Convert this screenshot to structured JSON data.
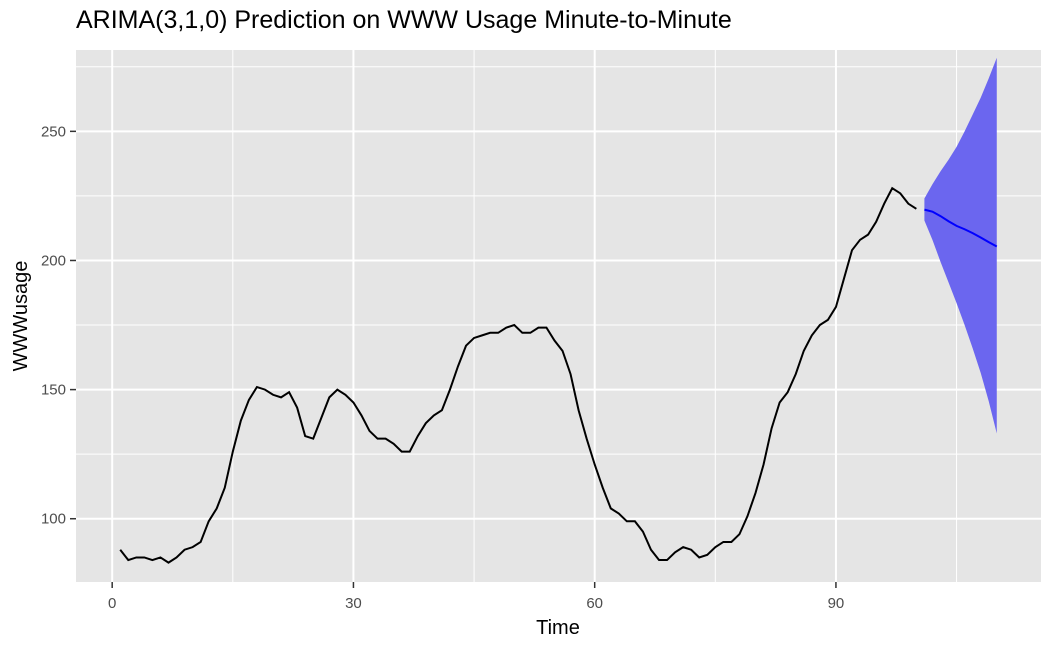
{
  "chart_data": {
    "type": "line",
    "title": "ARIMA(3,1,0) Prediction on WWW Usage Minute-to-Minute",
    "xlabel": "Time",
    "ylabel": "WWWusage",
    "xlim": [
      -4.5,
      115.5
    ],
    "ylim": [
      75.5,
      281.5
    ],
    "x_ticks": [
      0,
      30,
      60,
      90
    ],
    "y_ticks": [
      100,
      150,
      200,
      250
    ],
    "grid": true,
    "legend": "none",
    "colors": {
      "panel": "#e5e5e5",
      "grid": "#ffffff",
      "observed": "#000000",
      "forecast": "#0000ff",
      "interval": "#6b66ef"
    },
    "series": [
      {
        "x": [
          1,
          2,
          3,
          4,
          5,
          6,
          7,
          8,
          9,
          10,
          11,
          12,
          13,
          14,
          15,
          16,
          17,
          18,
          19,
          20,
          21,
          22,
          23,
          24,
          25,
          26,
          27,
          28,
          29,
          30,
          31,
          32,
          33,
          34,
          35,
          36,
          37,
          38,
          39,
          40,
          41,
          42,
          43,
          44,
          45,
          46,
          47,
          48,
          49,
          50,
          51,
          52,
          53,
          54,
          55,
          56,
          57,
          58,
          59,
          60,
          61,
          62,
          63,
          64,
          65,
          66,
          67,
          68,
          69,
          70,
          71,
          72,
          73,
          74,
          75,
          76,
          77,
          78,
          79,
          80,
          81,
          82,
          83,
          84,
          85,
          86,
          87,
          88,
          89,
          90,
          91,
          92,
          93,
          94,
          95,
          96,
          97,
          98,
          99,
          100
        ],
        "values": [
          88,
          84,
          85,
          85,
          84,
          85,
          83,
          85,
          88,
          89,
          91,
          99,
          104,
          112,
          126,
          138,
          146,
          151,
          150,
          148,
          147,
          149,
          143,
          132,
          131,
          139,
          147,
          150,
          148,
          145,
          140,
          134,
          131,
          131,
          129,
          126,
          126,
          132,
          137,
          140,
          142,
          150,
          159,
          167,
          170,
          171,
          172,
          172,
          174,
          175,
          172,
          172,
          174,
          174,
          169,
          165,
          156,
          142,
          131,
          121,
          112,
          104,
          102,
          99,
          99,
          95,
          88,
          84,
          84,
          87,
          89,
          88,
          85,
          86,
          89,
          91,
          91,
          94,
          101,
          110,
          121,
          135,
          145,
          149,
          156,
          165,
          171,
          175,
          177,
          182,
          193,
          204,
          208,
          210,
          215,
          222,
          228,
          226,
          222,
          220
        ]
      },
      {
        "x": [
          101,
          102,
          103,
          104,
          105,
          106,
          107,
          108,
          109,
          110
        ],
        "values": [
          219.7,
          218.9,
          217.2,
          215.2,
          213.4,
          212.1,
          210.6,
          208.9,
          207.1,
          205.4
        ],
        "lower": [
          215.5,
          208.0,
          199.5,
          191.5,
          183.5,
          175.0,
          166.0,
          156.5,
          145.5,
          133.0
        ],
        "upper": [
          224.0,
          229.5,
          234.5,
          239.0,
          244.0,
          250.0,
          256.5,
          263.0,
          270.5,
          278.5
        ]
      }
    ]
  }
}
